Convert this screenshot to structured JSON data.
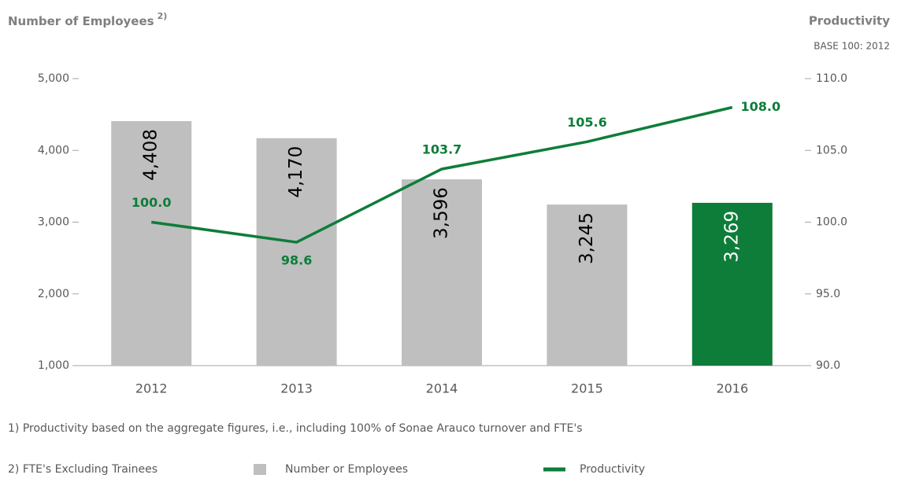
{
  "chart_data": {
    "type": "bar-line",
    "y_label": "Number of Employees",
    "y_label_note": "2)",
    "y2_label": "Productivity",
    "y2_subtitle": "BASE 100: 2012",
    "categories": [
      "2012",
      "2013",
      "2014",
      "2015",
      "2016"
    ],
    "series": [
      {
        "name": "Number or Employees",
        "color": "#bfbfbf",
        "colors": [
          "#bfbfbf",
          "#bfbfbf",
          "#bfbfbf",
          "#bfbfbf",
          "#0e7d3a"
        ],
        "values": [
          4408,
          4170,
          3596,
          3245,
          3269
        ],
        "value_labels": [
          "4,408",
          "4,170",
          "3,596",
          "3,245",
          "3,269"
        ]
      },
      {
        "name": "Productivity",
        "color": "#0e7d3a",
        "axis": "y2",
        "values": [
          100.0,
          98.6,
          103.7,
          105.6,
          108.0
        ],
        "value_labels": [
          "100.0",
          "98.6",
          "103.7",
          "105.6",
          "108.0"
        ]
      }
    ],
    "ylim": [
      1000,
      5000
    ],
    "yticks": [
      {
        "value": 1000,
        "label": "1,000"
      },
      {
        "value": 2000,
        "label": "2,000"
      },
      {
        "value": 3000,
        "label": "3,000"
      },
      {
        "value": 4000,
        "label": "4,000"
      },
      {
        "value": 5000,
        "label": "5,000"
      }
    ],
    "y2lim": [
      90,
      110
    ],
    "y2ticks": [
      {
        "value": 90,
        "label": "90.0"
      },
      {
        "value": 95,
        "label": "95.0"
      },
      {
        "value": 100,
        "label": "100.0"
      },
      {
        "value": 105,
        "label": "105.0"
      },
      {
        "value": 110,
        "label": "110.0"
      }
    ],
    "footnotes": [
      "1) Productivity based on the aggregate figures, i.e., including 100% of Sonae Arauco turnover and FTE's",
      "2) FTE's Excluding Trainees"
    ]
  }
}
